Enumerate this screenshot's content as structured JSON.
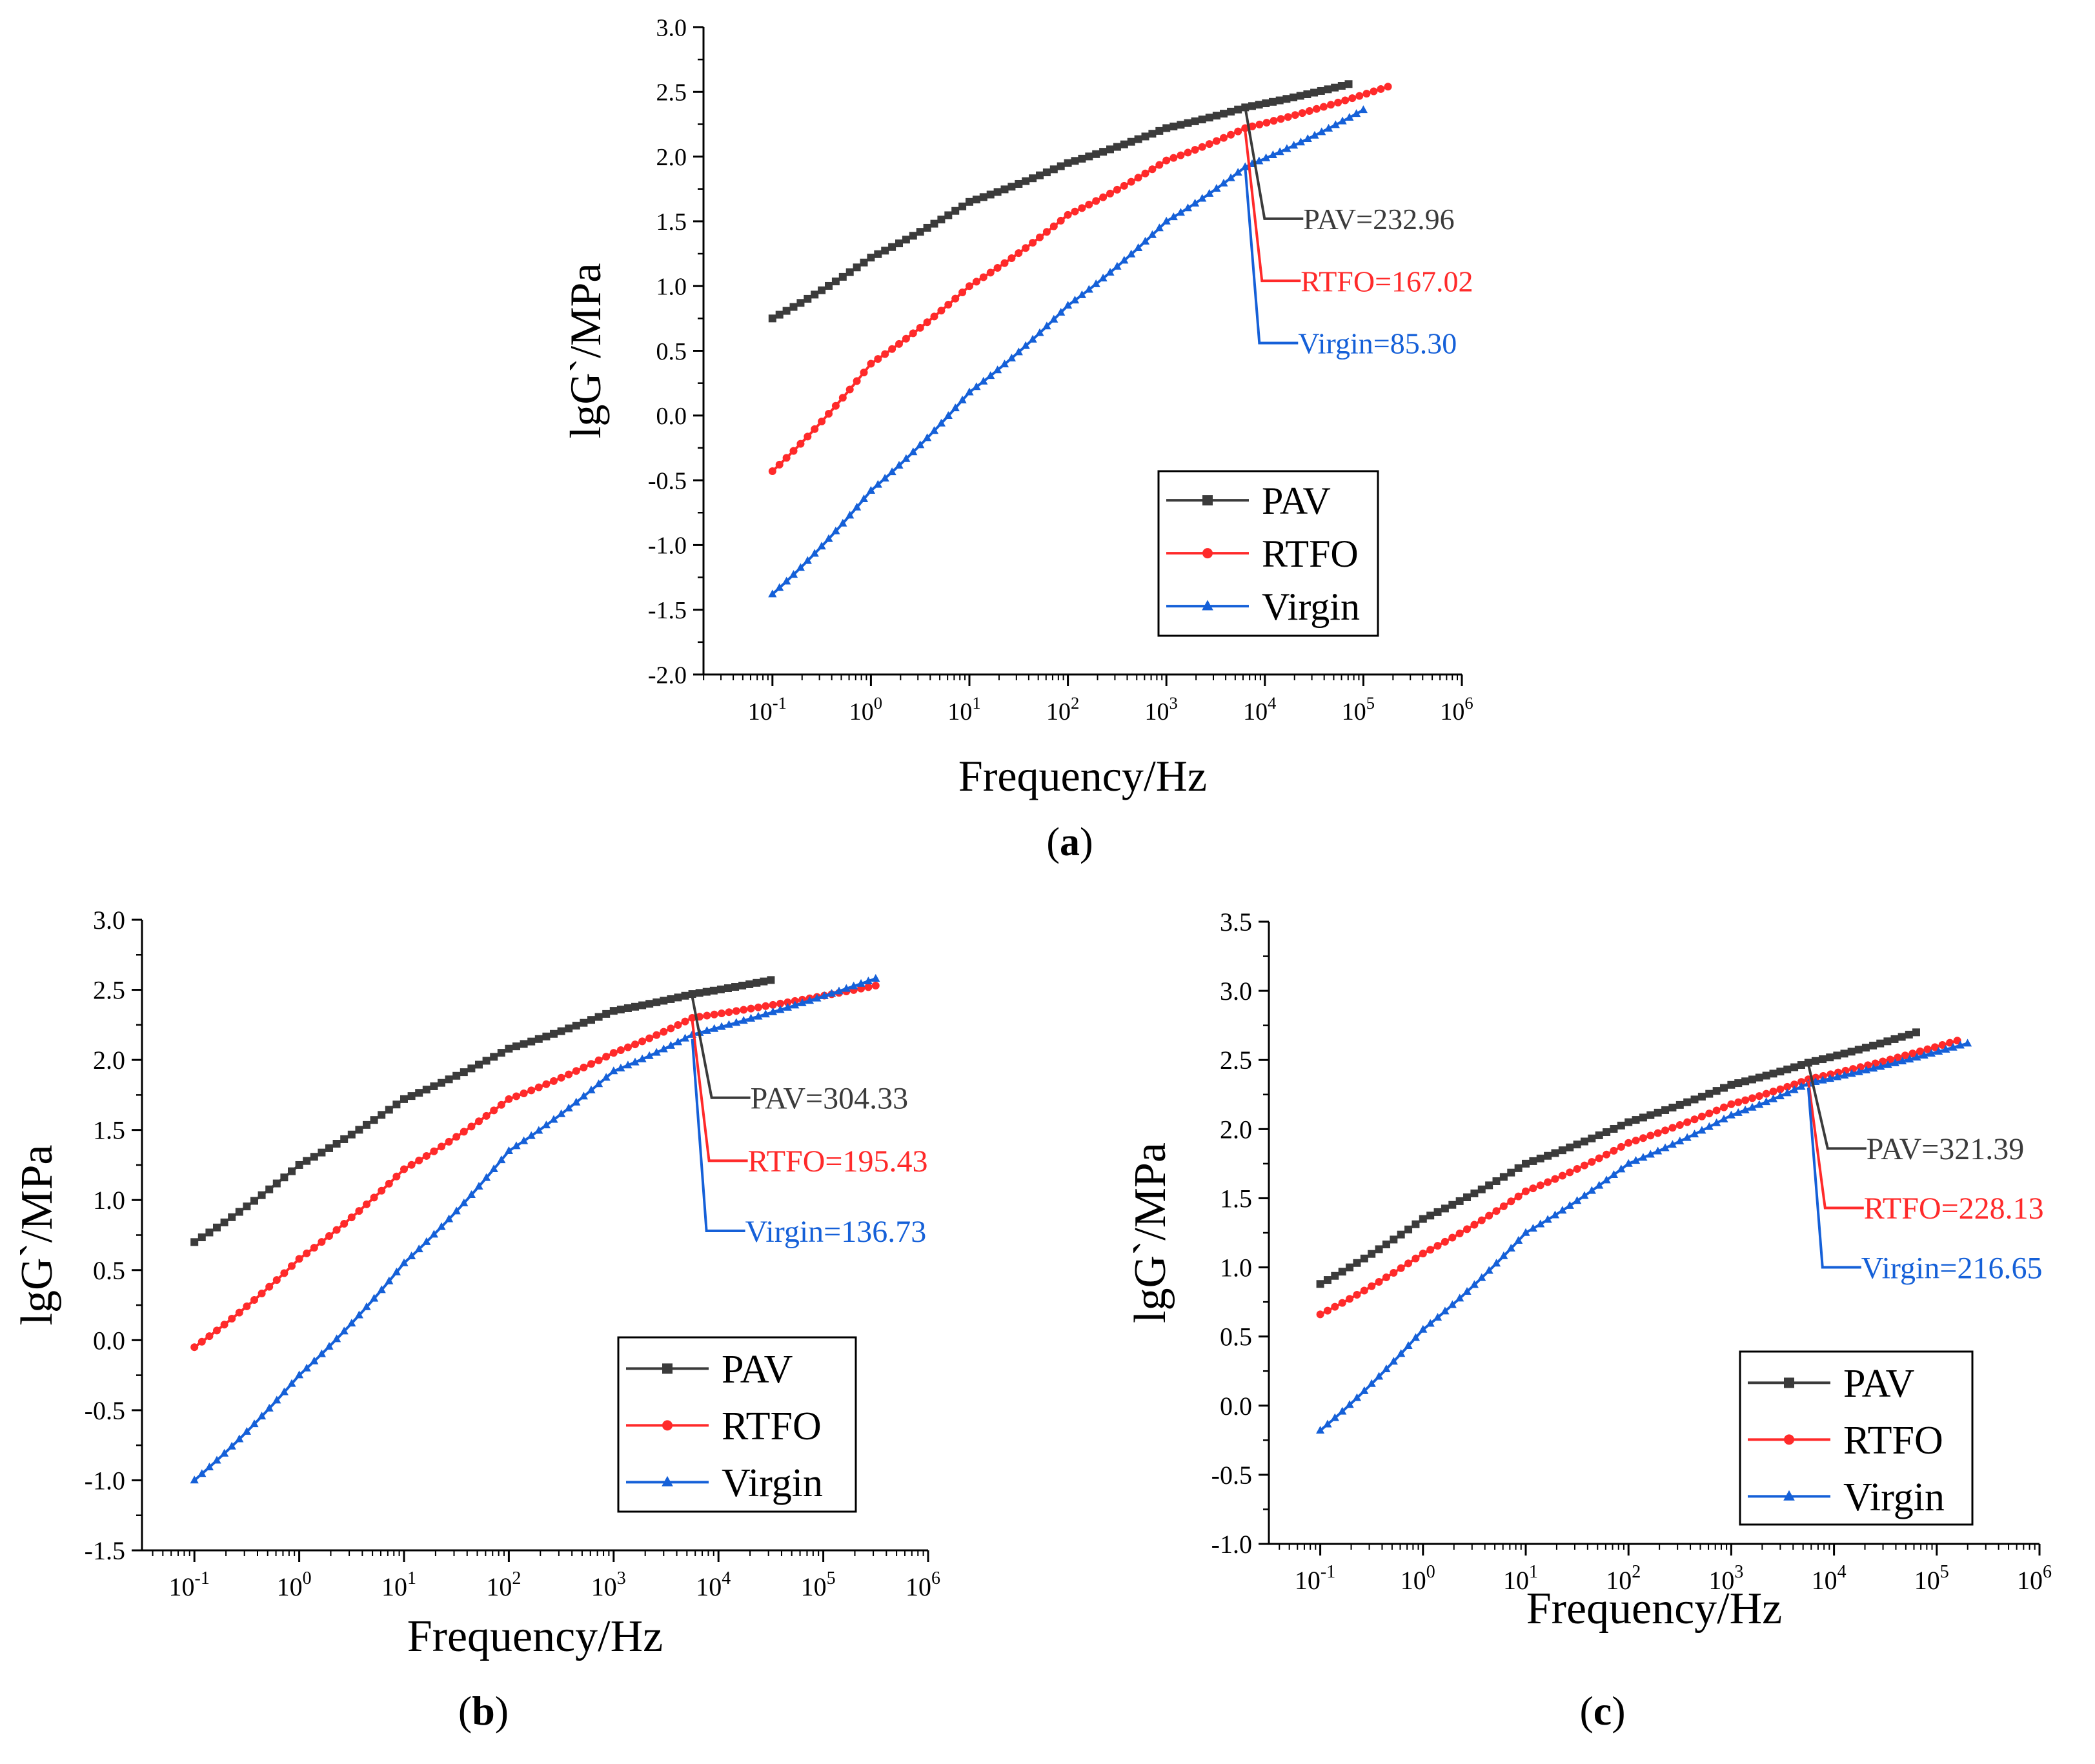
{
  "colors": {
    "PAV": "#3b3b3b",
    "RTFO": "#ff2a2a",
    "Virgin": "#1560d8",
    "axis": "#000000"
  },
  "chart_data": [
    {
      "id": "a",
      "type": "line",
      "panel_label": "a",
      "xlabel": "Frequency/Hz",
      "ylabel": "lgG`/MPa",
      "xscale": "log",
      "xlim_exp": [
        -1.7,
        6
      ],
      "ylim": [
        -2.0,
        3.0
      ],
      "ytick_step": 0.5,
      "ytick_labels": [
        "-2.0",
        "-1.5",
        "-1.0",
        "-0.5",
        "0.0",
        "0.5",
        "1.0",
        "1.5",
        "2.0",
        "2.5",
        "3.0"
      ],
      "xtick_base": "10",
      "xtick_exponents": [
        "-1",
        "0",
        "1",
        "2",
        "3",
        "4",
        "5",
        "6"
      ],
      "legend": [
        "PAV",
        "RTFO",
        "Virgin"
      ],
      "legend_position": "lower-right",
      "series": [
        {
          "name": "PAV",
          "marker": "square",
          "x_exp": [
            -1,
            0,
            1,
            2,
            3,
            3.8,
            4.85
          ],
          "y": [
            0.75,
            1.22,
            1.65,
            1.95,
            2.22,
            2.38,
            2.56
          ]
        },
        {
          "name": "RTFO",
          "marker": "circle",
          "x_exp": [
            -1,
            0,
            1,
            2,
            3,
            3.8,
            5.25
          ],
          "y": [
            -0.43,
            0.4,
            1.0,
            1.55,
            1.97,
            2.22,
            2.54
          ]
        },
        {
          "name": "Virgin",
          "marker": "triangle",
          "x_exp": [
            -1,
            0,
            1,
            2,
            3,
            3.8,
            5.0
          ],
          "y": [
            -1.38,
            -0.58,
            0.18,
            0.85,
            1.5,
            1.92,
            2.36
          ]
        }
      ],
      "annotations": [
        {
          "series": "PAV",
          "text": "PAV=232.96",
          "at_x_exp": 3.8,
          "at_y": 2.38,
          "label_y": 1.52
        },
        {
          "series": "RTFO",
          "text": "RTFO=167.02",
          "at_x_exp": 3.8,
          "at_y": 2.2,
          "label_y": 1.04
        },
        {
          "series": "Virgin",
          "text": "Virgin=85.30",
          "at_x_exp": 3.8,
          "at_y": 1.92,
          "label_y": 0.56
        }
      ]
    },
    {
      "id": "b",
      "type": "line",
      "panel_label": "b",
      "xlabel": "Frequency/Hz",
      "ylabel": "lgG`/MPa",
      "xscale": "log",
      "xlim_exp": [
        -1.5,
        6
      ],
      "ylim": [
        -1.5,
        3.0
      ],
      "ytick_step": 0.5,
      "ytick_labels": [
        "-1.5",
        "-1.0",
        "-0.5",
        "0.0",
        "0.5",
        "1.0",
        "1.5",
        "2.0",
        "2.5",
        "3.0"
      ],
      "xtick_base": "10",
      "xtick_exponents": [
        "-1",
        "0",
        "1",
        "2",
        "3",
        "4",
        "5",
        "6"
      ],
      "legend": [
        "PAV",
        "RTFO",
        "Virgin"
      ],
      "legend_position": "lower-right",
      "series": [
        {
          "name": "PAV",
          "marker": "square",
          "x_exp": [
            -1,
            0,
            1,
            2,
            3,
            3.75,
            4.5
          ],
          "y": [
            0.7,
            1.25,
            1.72,
            2.08,
            2.35,
            2.47,
            2.57
          ]
        },
        {
          "name": "RTFO",
          "marker": "circle",
          "x_exp": [
            -1,
            0,
            1,
            2,
            3,
            3.75,
            5.5
          ],
          "y": [
            -0.05,
            0.58,
            1.22,
            1.72,
            2.05,
            2.3,
            2.53
          ]
        },
        {
          "name": "Virgin",
          "marker": "triangle",
          "x_exp": [
            -1,
            0,
            1,
            2,
            3,
            3.75,
            5.5
          ],
          "y": [
            -1.0,
            -0.25,
            0.55,
            1.35,
            1.92,
            2.18,
            2.58
          ]
        }
      ],
      "annotations": [
        {
          "series": "PAV",
          "text": "PAV=304.33",
          "at_x_exp": 3.75,
          "at_y": 2.45,
          "label_y": 1.73
        },
        {
          "series": "RTFO",
          "text": "RTFO=195.43",
          "at_x_exp": 3.75,
          "at_y": 2.28,
          "label_y": 1.28
        },
        {
          "series": "Virgin",
          "text": "Virgin=136.73",
          "at_x_exp": 3.75,
          "at_y": 2.15,
          "label_y": 0.78
        }
      ]
    },
    {
      "id": "c",
      "type": "line",
      "panel_label": "c",
      "xlabel": "Frequency/Hz",
      "ylabel": "lgG`/MPa",
      "xscale": "log",
      "xlim_exp": [
        -1.5,
        6
      ],
      "ylim": [
        -1.0,
        3.5
      ],
      "ytick_step": 0.5,
      "ytick_labels": [
        "-1.0",
        "-0.5",
        "0.0",
        "0.5",
        "1.0",
        "1.5",
        "2.0",
        "2.5",
        "3.0",
        "3.5"
      ],
      "xtick_base": "10",
      "xtick_exponents": [
        "-1",
        "0",
        "1",
        "2",
        "3",
        "4",
        "5",
        "6"
      ],
      "legend": [
        "PAV",
        "RTFO",
        "Virgin"
      ],
      "legend_position": "lower-right",
      "series": [
        {
          "name": "PAV",
          "marker": "square",
          "x_exp": [
            -1,
            0,
            1,
            2,
            3,
            3.75,
            4.8
          ],
          "y": [
            0.88,
            1.35,
            1.75,
            2.05,
            2.32,
            2.48,
            2.7
          ]
        },
        {
          "name": "RTFO",
          "marker": "circle",
          "x_exp": [
            -1,
            0,
            1,
            2,
            3,
            3.75,
            5.2
          ],
          "y": [
            0.66,
            1.1,
            1.55,
            1.9,
            2.18,
            2.36,
            2.64
          ]
        },
        {
          "name": "Virgin",
          "marker": "triangle",
          "x_exp": [
            -1,
            0,
            1,
            2,
            3,
            3.75,
            5.3
          ],
          "y": [
            -0.18,
            0.55,
            1.25,
            1.75,
            2.1,
            2.33,
            2.62
          ]
        }
      ],
      "annotations": [
        {
          "series": "PAV",
          "text": "PAV=321.39",
          "at_x_exp": 3.75,
          "at_y": 2.47,
          "label_y": 1.86
        },
        {
          "series": "RTFO",
          "text": "RTFO=228.13",
          "at_x_exp": 3.75,
          "at_y": 2.35,
          "label_y": 1.43
        },
        {
          "series": "Virgin",
          "text": "Virgin=216.65",
          "at_x_exp": 3.75,
          "at_y": 2.3,
          "label_y": 1.0
        }
      ]
    }
  ]
}
